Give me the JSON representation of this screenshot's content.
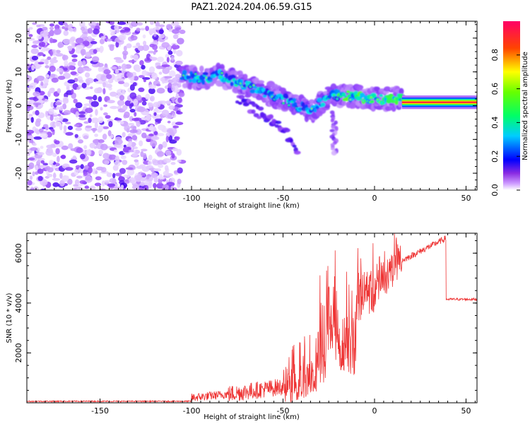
{
  "title": "PAZ1.2024.204.06.59.G15",
  "chart_data": [
    {
      "type": "heatmap",
      "xlabel": "Height of straight line (km)",
      "ylabel": "Frequency (Hz)",
      "xlim": [
        -190,
        56
      ],
      "ylim": [
        -25,
        25
      ],
      "xticks": [
        -150,
        -100,
        -50,
        0,
        50
      ],
      "yticks": [
        -20,
        -10,
        0,
        10,
        20
      ],
      "colorbar": {
        "label": "Normalized spectral amplitude",
        "range": [
          0,
          1
        ],
        "ticks": [
          0.0,
          0.2,
          0.4,
          0.6,
          0.8
        ],
        "colors": [
          "#ffffff",
          "#cc99ff",
          "#6600ff",
          "#0000ff",
          "#00ffff",
          "#00ff00",
          "#ffff00",
          "#ff0000",
          "#ff0066"
        ]
      },
      "features": {
        "noise_region_x": [
          -190,
          -105
        ],
        "signal_path": [
          {
            "x": -105,
            "y": 9
          },
          {
            "x": -95,
            "y": 8
          },
          {
            "x": -85,
            "y": 9
          },
          {
            "x": -75,
            "y": 7
          },
          {
            "x": -65,
            "y": 5
          },
          {
            "x": -55,
            "y": 3
          },
          {
            "x": -45,
            "y": 1
          },
          {
            "x": -35,
            "y": -2
          },
          {
            "x": -25,
            "y": 3
          },
          {
            "x": -15,
            "y": 3
          },
          {
            "x": 0,
            "y": 2
          },
          {
            "x": 15,
            "y": 2
          },
          {
            "x": 56,
            "y": 1
          }
        ],
        "secondary_branch": [
          {
            "x": -75,
            "y": 2
          },
          {
            "x": -60,
            "y": -3
          },
          {
            "x": -50,
            "y": -7
          },
          {
            "x": -42,
            "y": -13
          }
        ],
        "flat_band_start_x": 15,
        "flat_band_frequency": 1
      }
    },
    {
      "type": "line",
      "xlabel": "Height of straight line (km)",
      "ylabel": "SNR (10 * v/v)",
      "xlim": [
        -190,
        56
      ],
      "ylim": [
        0,
        6800
      ],
      "xticks": [
        -150,
        -100,
        -50,
        0,
        50
      ],
      "yticks": [
        2000,
        4000,
        6000
      ],
      "series": [
        {
          "color": "#ee3333",
          "segments": [
            {
              "x": [
                -190,
                -100
              ],
              "mean": [
                60,
                60
              ],
              "spread": 50
            },
            {
              "x": [
                -100,
                -80
              ],
              "mean": [
                200,
                350
              ],
              "spread": 350
            },
            {
              "x": [
                -80,
                -50
              ],
              "mean": [
                350,
                650
              ],
              "spread": 700
            },
            {
              "x": [
                -50,
                -30
              ],
              "mean": [
                650,
                1200
              ],
              "spread": 1400
            },
            {
              "x": [
                -30,
                -20
              ],
              "mean": [
                2500,
                3500
              ],
              "spread": 3500
            },
            {
              "x": [
                -20,
                -10
              ],
              "mean": [
                2000,
                2500
              ],
              "spread": 2500
            },
            {
              "x": [
                -10,
                0
              ],
              "mean": [
                4200,
                4500
              ],
              "spread": 1800
            },
            {
              "x": [
                0,
                15
              ],
              "mean": [
                4500,
                5800
              ],
              "spread": 1300
            },
            {
              "x": [
                15,
                39
              ],
              "mean": [
                5700,
                6600
              ],
              "spread": 250
            },
            {
              "x": [
                39,
                56
              ],
              "mean": [
                4150,
                4150
              ],
              "spread": 100
            }
          ]
        }
      ]
    }
  ]
}
